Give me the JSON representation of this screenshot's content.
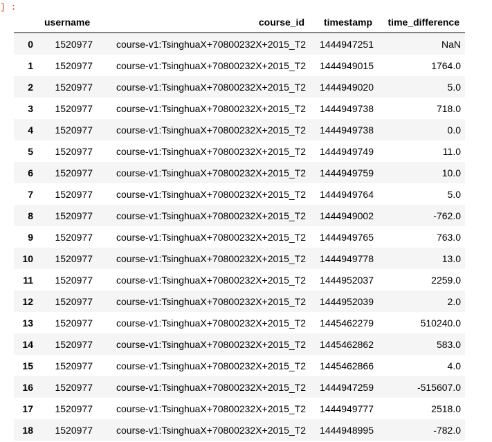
{
  "prompt": "] :",
  "columns": {
    "index": "",
    "username": "username",
    "course_id": "course_id",
    "timestamp": "timestamp",
    "time_difference": "time_difference"
  },
  "rows": [
    {
      "idx": "0",
      "username": "1520977",
      "course_id": "course-v1:TsinghuaX+70800232X+2015_T2",
      "timestamp": "1444947251",
      "time_difference": "NaN"
    },
    {
      "idx": "1",
      "username": "1520977",
      "course_id": "course-v1:TsinghuaX+70800232X+2015_T2",
      "timestamp": "1444949015",
      "time_difference": "1764.0"
    },
    {
      "idx": "2",
      "username": "1520977",
      "course_id": "course-v1:TsinghuaX+70800232X+2015_T2",
      "timestamp": "1444949020",
      "time_difference": "5.0"
    },
    {
      "idx": "3",
      "username": "1520977",
      "course_id": "course-v1:TsinghuaX+70800232X+2015_T2",
      "timestamp": "1444949738",
      "time_difference": "718.0"
    },
    {
      "idx": "4",
      "username": "1520977",
      "course_id": "course-v1:TsinghuaX+70800232X+2015_T2",
      "timestamp": "1444949738",
      "time_difference": "0.0"
    },
    {
      "idx": "5",
      "username": "1520977",
      "course_id": "course-v1:TsinghuaX+70800232X+2015_T2",
      "timestamp": "1444949749",
      "time_difference": "11.0"
    },
    {
      "idx": "6",
      "username": "1520977",
      "course_id": "course-v1:TsinghuaX+70800232X+2015_T2",
      "timestamp": "1444949759",
      "time_difference": "10.0"
    },
    {
      "idx": "7",
      "username": "1520977",
      "course_id": "course-v1:TsinghuaX+70800232X+2015_T2",
      "timestamp": "1444949764",
      "time_difference": "5.0"
    },
    {
      "idx": "8",
      "username": "1520977",
      "course_id": "course-v1:TsinghuaX+70800232X+2015_T2",
      "timestamp": "1444949002",
      "time_difference": "-762.0"
    },
    {
      "idx": "9",
      "username": "1520977",
      "course_id": "course-v1:TsinghuaX+70800232X+2015_T2",
      "timestamp": "1444949765",
      "time_difference": "763.0"
    },
    {
      "idx": "10",
      "username": "1520977",
      "course_id": "course-v1:TsinghuaX+70800232X+2015_T2",
      "timestamp": "1444949778",
      "time_difference": "13.0"
    },
    {
      "idx": "11",
      "username": "1520977",
      "course_id": "course-v1:TsinghuaX+70800232X+2015_T2",
      "timestamp": "1444952037",
      "time_difference": "2259.0"
    },
    {
      "idx": "12",
      "username": "1520977",
      "course_id": "course-v1:TsinghuaX+70800232X+2015_T2",
      "timestamp": "1444952039",
      "time_difference": "2.0"
    },
    {
      "idx": "13",
      "username": "1520977",
      "course_id": "course-v1:TsinghuaX+70800232X+2015_T2",
      "timestamp": "1445462279",
      "time_difference": "510240.0"
    },
    {
      "idx": "14",
      "username": "1520977",
      "course_id": "course-v1:TsinghuaX+70800232X+2015_T2",
      "timestamp": "1445462862",
      "time_difference": "583.0"
    },
    {
      "idx": "15",
      "username": "1520977",
      "course_id": "course-v1:TsinghuaX+70800232X+2015_T2",
      "timestamp": "1445462866",
      "time_difference": "4.0"
    },
    {
      "idx": "16",
      "username": "1520977",
      "course_id": "course-v1:TsinghuaX+70800232X+2015_T2",
      "timestamp": "1444947259",
      "time_difference": "-515607.0"
    },
    {
      "idx": "17",
      "username": "1520977",
      "course_id": "course-v1:TsinghuaX+70800232X+2015_T2",
      "timestamp": "1444949777",
      "time_difference": "2518.0"
    },
    {
      "idx": "18",
      "username": "1520977",
      "course_id": "course-v1:TsinghuaX+70800232X+2015_T2",
      "timestamp": "1444948995",
      "time_difference": "-782.0"
    }
  ]
}
